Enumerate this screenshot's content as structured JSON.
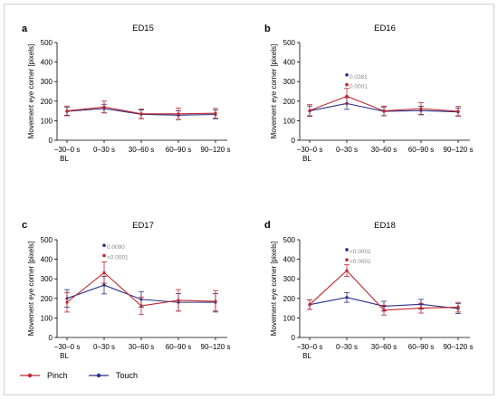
{
  "colors": {
    "pinch": "#c0272d",
    "touch": "#2b2f87",
    "axis": "#000000",
    "annotation": "#8a8a8a"
  },
  "legend": [
    {
      "name": "Pinch",
      "color": "#c0272d"
    },
    {
      "name": "Touch",
      "color": "#2b2f87"
    }
  ],
  "chart_data": [
    {
      "letter": "a",
      "title": "ED15",
      "type": "line",
      "ylabel": "Movement eye corner [pixels]",
      "ylim": [
        0,
        500
      ],
      "yticks": [
        0,
        100,
        200,
        300,
        400,
        500
      ],
      "categories": [
        "−30–0 s",
        "0–30 s",
        "30–60 s",
        "60–90 s",
        "90–120 s"
      ],
      "baseline_label": "BL",
      "series": [
        {
          "name": "Pinch",
          "values": [
            150,
            170,
            135,
            135,
            138
          ],
          "err": [
            25,
            30,
            25,
            30,
            25
          ]
        },
        {
          "name": "Touch",
          "values": [
            148,
            162,
            133,
            128,
            132
          ],
          "err": [
            20,
            22,
            22,
            22,
            22
          ]
        }
      ],
      "annotations": []
    },
    {
      "letter": "b",
      "title": "ED16",
      "type": "line",
      "ylabel": "Movement eye corner [pixels]",
      "ylim": [
        0,
        500
      ],
      "yticks": [
        0,
        100,
        200,
        300,
        400,
        500
      ],
      "categories": [
        "−30–0 s",
        "0–30 s",
        "30–60 s",
        "60–90 s",
        "90–120 s"
      ],
      "baseline_label": "BL",
      "series": [
        {
          "name": "Pinch",
          "values": [
            152,
            225,
            150,
            162,
            148
          ],
          "err": [
            30,
            40,
            25,
            30,
            25
          ]
        },
        {
          "name": "Touch",
          "values": [
            150,
            188,
            148,
            152,
            145
          ],
          "err": [
            25,
            30,
            22,
            22,
            20
          ]
        }
      ],
      "annotations": [
        {
          "text": "0.0381",
          "y": 325,
          "color": "#2b2f87"
        },
        {
          "text": "0.0001",
          "y": 275,
          "color": "#c0272d"
        }
      ]
    },
    {
      "letter": "c",
      "title": "ED17",
      "type": "line",
      "ylabel": "Movement eye corner [pixels]",
      "ylim": [
        0,
        500
      ],
      "yticks": [
        0,
        100,
        200,
        300,
        400,
        500
      ],
      "categories": [
        "−30–0 s",
        "0–30 s",
        "30–60 s",
        "60–90 s",
        "90–120 s"
      ],
      "baseline_label": "BL",
      "series": [
        {
          "name": "Pinch",
          "values": [
            180,
            332,
            162,
            190,
            185
          ],
          "err": [
            50,
            55,
            45,
            55,
            55
          ]
        },
        {
          "name": "Touch",
          "values": [
            200,
            268,
            195,
            180,
            180
          ],
          "err": [
            45,
            45,
            40,
            45,
            45
          ]
        }
      ],
      "annotations": [
        {
          "text": "0.0090",
          "y": 462,
          "color": "#2b2f87"
        },
        {
          "text": "<0.0001",
          "y": 410,
          "color": "#c0272d"
        }
      ]
    },
    {
      "letter": "d",
      "title": "ED18",
      "type": "line",
      "ylabel": "Movement eye corner [pixels]",
      "ylim": [
        0,
        500
      ],
      "yticks": [
        0,
        100,
        200,
        300,
        400,
        500
      ],
      "categories": [
        "−30–0 s",
        "0–30 s",
        "30–60 s",
        "60–90 s",
        "90–120 s"
      ],
      "baseline_label": "BL",
      "series": [
        {
          "name": "Pinch",
          "values": [
            168,
            342,
            140,
            150,
            155
          ],
          "err": [
            25,
            30,
            25,
            25,
            25
          ]
        },
        {
          "name": "Touch",
          "values": [
            168,
            205,
            160,
            170,
            148
          ],
          "err": [
            25,
            25,
            25,
            25,
            25
          ]
        }
      ],
      "annotations": [
        {
          "text": "<0.0001",
          "y": 440,
          "color": "#2b2f87"
        },
        {
          "text": "<0.0001",
          "y": 388,
          "color": "#c0272d"
        }
      ]
    }
  ]
}
